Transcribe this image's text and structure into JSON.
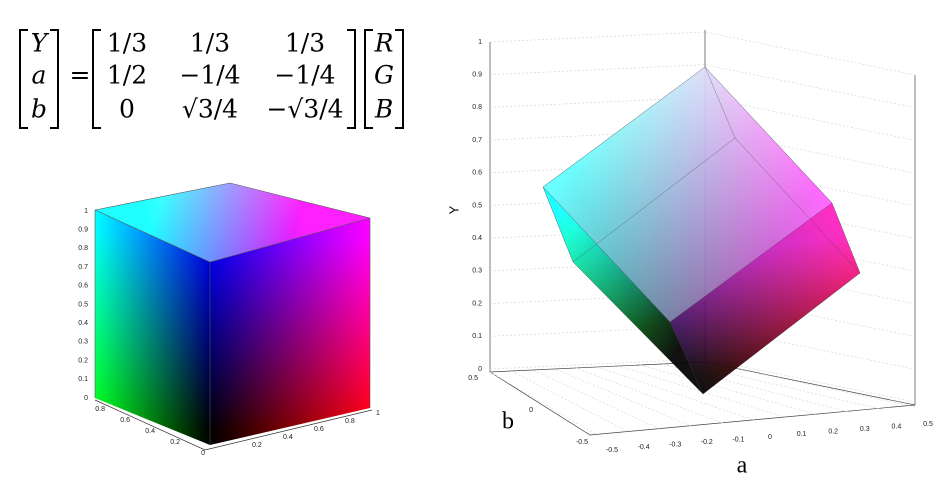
{
  "equation": {
    "lhs": [
      "Y",
      "a",
      "b"
    ],
    "equals": "=",
    "matrix": [
      [
        "1/3",
        "1/3",
        "1/3"
      ],
      [
        "1/2",
        "−1/4",
        "−1/4"
      ],
      [
        "0",
        "√3/4",
        "−√3/4"
      ]
    ],
    "rhs": [
      "R",
      "G",
      "B"
    ]
  },
  "left_plot": {
    "z_ticks": [
      "0",
      "0.1",
      "0.2",
      "0.3",
      "0.4",
      "0.5",
      "0.6",
      "0.7",
      "0.8",
      "0.9",
      "1"
    ],
    "x_ticks": [
      "0",
      "0.2",
      "0.4",
      "0.6",
      "0.8"
    ],
    "y_ticks": [
      "0.2",
      "0.4",
      "0.6",
      "0.8",
      "1"
    ]
  },
  "right_plot": {
    "y_label": "Y",
    "b_label": "b",
    "a_label": "a",
    "y_ticks": [
      "0",
      "0.1",
      "0.2",
      "0.3",
      "0.4",
      "0.5",
      "0.6",
      "0.7",
      "0.8",
      "0.9",
      "1"
    ],
    "b_ticks": [
      "0.5",
      "0",
      "-0.5"
    ],
    "a_ticks": [
      "-0.5",
      "-0.4",
      "-0.3",
      "-0.2",
      "-0.1",
      "0",
      "0.1",
      "0.2",
      "0.3",
      "0.4",
      "0.5"
    ]
  }
}
